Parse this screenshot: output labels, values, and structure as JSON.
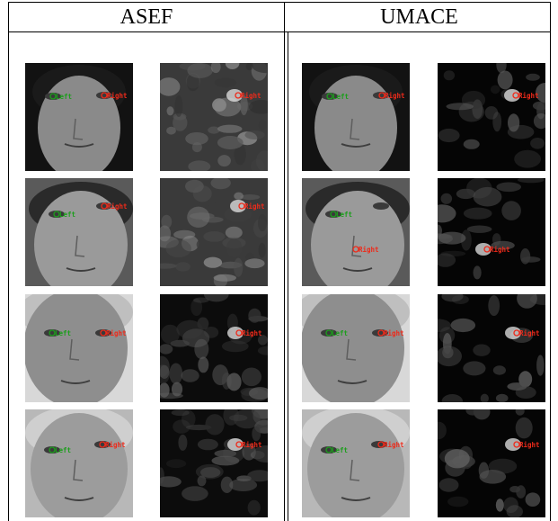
{
  "headers": {
    "left": "ASEF",
    "right": "UMACE"
  },
  "marker_labels": {
    "left_eye": "Left",
    "right_eye": "Right"
  },
  "colors": {
    "left_marker": "#1c9e1c",
    "right_marker": "#ee2a1a"
  },
  "rows": [
    {
      "asef_face": {
        "left_label": "Left",
        "right_label": "Right"
      },
      "asef_response": {
        "right_label": "Right"
      },
      "umace_face": {
        "left_label": "Left",
        "right_label": "Right"
      },
      "umace_response": {
        "right_label": "Right"
      }
    },
    {
      "asef_face": {
        "left_label": "Left",
        "right_label": "Right"
      },
      "asef_response": {
        "right_label": "Right"
      },
      "umace_face": {
        "left_label": "Left",
        "right_label": "Right"
      },
      "umace_response": {
        "right_label": "Right"
      }
    },
    {
      "asef_face": {
        "left_label": "Left",
        "right_label": "Right"
      },
      "asef_response": {
        "right_label": "Right"
      },
      "umace_face": {
        "left_label": "Left",
        "right_label": "Right"
      },
      "umace_response": {
        "right_label": "Right"
      }
    },
    {
      "asef_face": {
        "left_label": "Left",
        "right_label": "Right"
      },
      "asef_response": {
        "right_label": "Right"
      },
      "umace_face": {
        "left_label": "Left",
        "right_label": "Right"
      },
      "umace_response": {
        "right_label": "Right"
      }
    }
  ]
}
